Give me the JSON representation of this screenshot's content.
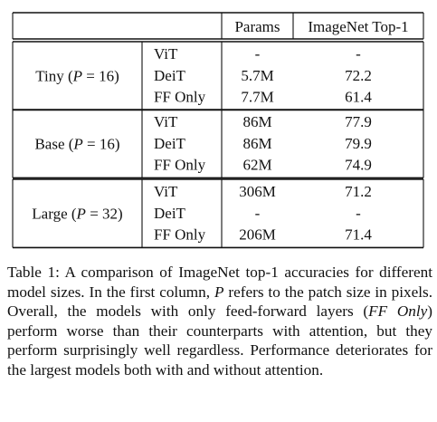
{
  "table": {
    "headers": {
      "model": "",
      "method": "",
      "params": "Params",
      "imagenet": "ImageNet Top-1"
    },
    "groups": [
      {
        "label": {
          "name": "Tiny",
          "var": "P",
          "eq": "=",
          "val": "16"
        },
        "rows": [
          {
            "method": "ViT",
            "params": "-",
            "top1": "-"
          },
          {
            "method": "DeiT",
            "params": "5.7M",
            "top1": "72.2"
          },
          {
            "method": "FF Only",
            "params": "7.7M",
            "top1": "61.4"
          }
        ]
      },
      {
        "label": {
          "name": "Base",
          "var": "P",
          "eq": "=",
          "val": "16"
        },
        "rows": [
          {
            "method": "ViT",
            "params": "86M",
            "top1": "77.9"
          },
          {
            "method": "DeiT",
            "params": "86M",
            "top1": "79.9"
          },
          {
            "method": "FF Only",
            "params": "62M",
            "top1": "74.9"
          }
        ]
      },
      {
        "label": {
          "name": "Large",
          "var": "P",
          "eq": "=",
          "val": "32"
        },
        "rows": [
          {
            "method": "ViT",
            "params": "306M",
            "top1": "71.2"
          },
          {
            "method": "DeiT",
            "params": "-",
            "top1": "-"
          },
          {
            "method": "FF Only",
            "params": "206M",
            "top1": "71.4"
          }
        ]
      }
    ]
  },
  "caption": {
    "prefix": "Table 1: A comparison of ImageNet top-1 accuracies for different model sizes. In the first column, ",
    "var": "P",
    "mid": " refers to the patch size in pixels. Overall, the models with only feed-forward layers (",
    "emph": "FF Only",
    "suffix": ") perform worse than their counterparts with attention, but they perform surprisingly well regardless. Performance deteriorates for the largest models both with and without attention."
  }
}
